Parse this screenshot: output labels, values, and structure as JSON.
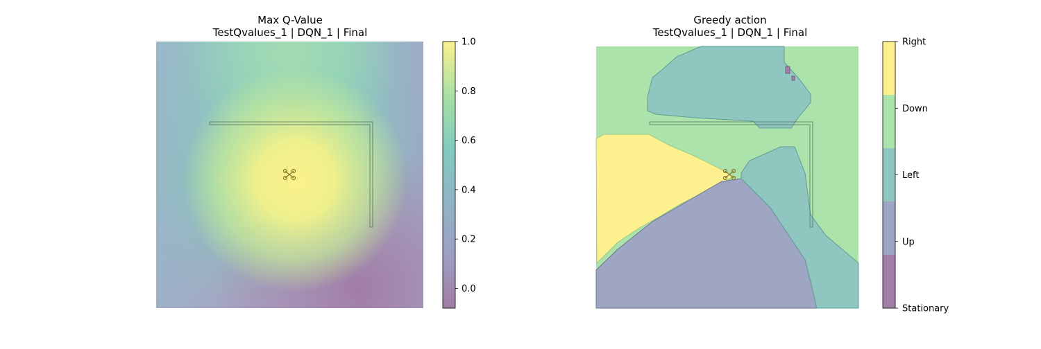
{
  "figure": {
    "background": "#ffffff"
  },
  "chart_data": [
    {
      "type": "heatmap",
      "title": "Max Q-Value",
      "subtitle": "TestQvalues_1 | DQN_1 | Final",
      "xlabel": "",
      "ylabel": "",
      "axes_visible": false,
      "colormap": "viridis",
      "alpha": 0.5,
      "colorbar": {
        "range": [
          -0.08,
          1.0
        ],
        "ticks": [
          0.0,
          0.2,
          0.4,
          0.6,
          0.8,
          1.0
        ],
        "tick_labels": [
          "0.0",
          "0.2",
          "0.4",
          "0.6",
          "0.8",
          "1.0"
        ]
      },
      "field_description": "approx. smooth value field on unit grid (x right, y down)",
      "peak": {
        "x": 0.5,
        "y": 0.5,
        "value": 1.0
      },
      "minimum": {
        "x": 0.78,
        "y": 0.93,
        "value": -0.08
      },
      "samples": [
        {
          "x": 0.0,
          "y": 0.0,
          "value": 0.28
        },
        {
          "x": 0.5,
          "y": 0.05,
          "value": 0.62
        },
        {
          "x": 0.95,
          "y": 0.1,
          "value": 0.45
        },
        {
          "x": 0.5,
          "y": 0.3,
          "value": 0.85
        },
        {
          "x": 0.5,
          "y": 0.5,
          "value": 1.0
        },
        {
          "x": 0.0,
          "y": 0.6,
          "value": 0.5
        },
        {
          "x": 0.3,
          "y": 0.9,
          "value": 0.3
        },
        {
          "x": 0.78,
          "y": 0.93,
          "value": -0.08
        },
        {
          "x": 1.0,
          "y": 0.6,
          "value": 0.15
        }
      ],
      "grid": false
    },
    {
      "type": "heatmap",
      "title": "Greedy action",
      "subtitle": "TestQvalues_1 | DQN_1 | Final",
      "xlabel": "",
      "ylabel": "",
      "axes_visible": false,
      "categorical": true,
      "colorbar": {
        "categories": [
          "Stationary",
          "Up",
          "Left",
          "Down",
          "Right"
        ]
      },
      "category_colors": {
        "Stationary": "#a27fa6",
        "Up": "#9ea6c3",
        "Left": "#8fc6c0",
        "Down": "#ace3aa",
        "Right": "#fdf18f"
      },
      "regions": [
        {
          "action": "Down",
          "area": "background / top-left and right side"
        },
        {
          "action": "Left",
          "area": "upper-center blob"
        },
        {
          "action": "Right",
          "area": "left-middle wedge"
        },
        {
          "action": "Up",
          "area": "bottom-left to bottom-center triangle"
        },
        {
          "action": "Left",
          "area": "right diagonal band"
        },
        {
          "action": "Stationary",
          "area": "small spot near top-right"
        }
      ],
      "grid": false
    }
  ]
}
